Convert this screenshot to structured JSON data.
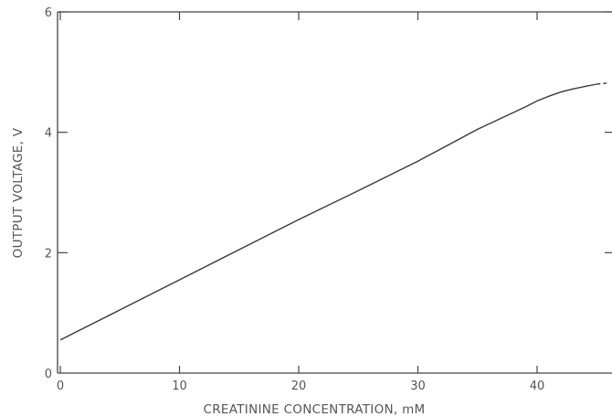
{
  "chart_data": {
    "type": "line",
    "title": "",
    "xlabel": "CREATININE CONCENTRATION,  mM",
    "ylabel": "OUTPUT VOLTAGE,  V",
    "xlim": [
      0,
      46
    ],
    "ylim": [
      0,
      6
    ],
    "x_ticks": [
      0,
      10,
      20,
      30,
      40
    ],
    "y_ticks": [
      0,
      2,
      4,
      6
    ],
    "x_tick_labels": [
      "0",
      "10",
      "20",
      "30",
      "40"
    ],
    "y_tick_labels": [
      "0",
      "2",
      "4",
      "6"
    ],
    "grid": false,
    "legend": "none",
    "series": [
      {
        "x": [
          0,
          5,
          10,
          15,
          20,
          25,
          30,
          35,
          39,
          40,
          41,
          42,
          43,
          44,
          45,
          46
        ],
        "y": [
          0.55,
          1.05,
          1.55,
          2.05,
          2.55,
          3.03,
          3.52,
          4.05,
          4.42,
          4.52,
          4.6,
          4.67,
          4.72,
          4.76,
          4.8,
          4.82
        ]
      }
    ]
  }
}
